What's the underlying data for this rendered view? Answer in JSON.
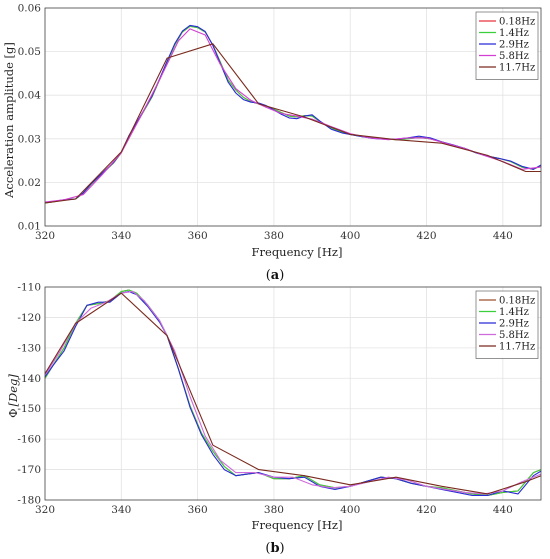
{
  "chart_data": [
    {
      "type": "line",
      "panel_label_open": "(",
      "panel_label_letter": "a",
      "panel_label_close": ")",
      "xlabel": "Frequency [Hz]",
      "ylabel": "Acceleration amplitude [g]",
      "xlim": [
        320,
        450
      ],
      "ylim": [
        0.01,
        0.06
      ],
      "xticks": [
        320,
        340,
        360,
        380,
        400,
        420,
        440
      ],
      "yticks": [
        "0.01",
        "0.02",
        "0.03",
        "0.04",
        "0.05",
        "0.06"
      ],
      "grid": true,
      "legend_position": "top-right",
      "series": [
        {
          "name": "0.18Hz",
          "color": "#e8333f",
          "x": [
            320,
            322,
            325,
            328,
            330,
            332,
            335,
            338,
            340,
            342,
            345,
            348,
            350,
            352,
            354,
            356,
            358,
            360,
            362,
            364,
            366,
            368,
            370,
            372,
            374,
            376,
            378,
            380,
            382,
            384,
            386,
            388,
            390,
            392,
            395,
            398,
            400,
            403,
            406,
            409,
            412,
            415,
            418,
            421,
            424,
            427,
            430,
            433,
            436,
            439,
            442,
            445,
            448,
            450
          ],
          "y": [
            0.0153,
            0.0155,
            0.016,
            0.0162,
            0.0175,
            0.0195,
            0.022,
            0.0245,
            0.0268,
            0.0305,
            0.035,
            0.0395,
            0.0435,
            0.0475,
            0.0515,
            0.0545,
            0.0558,
            0.0555,
            0.0545,
            0.0515,
            0.0475,
            0.0435,
            0.0412,
            0.0395,
            0.0385,
            0.038,
            0.0375,
            0.0368,
            0.036,
            0.0352,
            0.035,
            0.0353,
            0.0352,
            0.034,
            0.0325,
            0.0315,
            0.031,
            0.0305,
            0.0302,
            0.03,
            0.0298,
            0.03,
            0.0303,
            0.03,
            0.0293,
            0.0285,
            0.0278,
            0.0268,
            0.026,
            0.0255,
            0.0248,
            0.0235,
            0.023,
            0.0238
          ]
        },
        {
          "name": "1.4Hz",
          "color": "#3ccf3c",
          "x": [
            320,
            322,
            325,
            328,
            330,
            332,
            335,
            338,
            340,
            342,
            345,
            348,
            350,
            352,
            354,
            356,
            358,
            360,
            362,
            364,
            366,
            368,
            370,
            372,
            374,
            376,
            378,
            380,
            382,
            384,
            386,
            388,
            390,
            392,
            395,
            398,
            400,
            403,
            406,
            409,
            412,
            415,
            418,
            421,
            424,
            427,
            430,
            433,
            436,
            439,
            442,
            445,
            448,
            450
          ],
          "y": [
            0.0153,
            0.0155,
            0.016,
            0.0162,
            0.0175,
            0.0195,
            0.022,
            0.0245,
            0.0268,
            0.0305,
            0.035,
            0.0395,
            0.0435,
            0.0475,
            0.0515,
            0.0545,
            0.0558,
            0.0555,
            0.0545,
            0.0515,
            0.0475,
            0.0435,
            0.0412,
            0.0395,
            0.0385,
            0.038,
            0.0375,
            0.0368,
            0.036,
            0.0352,
            0.035,
            0.0353,
            0.0352,
            0.034,
            0.0325,
            0.0315,
            0.031,
            0.0305,
            0.0302,
            0.03,
            0.0298,
            0.03,
            0.0303,
            0.03,
            0.0293,
            0.0285,
            0.0278,
            0.0268,
            0.026,
            0.0255,
            0.0248,
            0.0235,
            0.023,
            0.0238
          ]
        },
        {
          "name": "2.9Hz",
          "color": "#2a2ad6",
          "x": [
            320,
            322,
            325,
            328,
            330,
            332,
            335,
            338,
            340,
            342,
            345,
            348,
            350,
            352,
            354,
            356,
            358,
            360,
            362,
            364,
            366,
            368,
            370,
            372,
            374,
            376,
            378,
            380,
            382,
            384,
            386,
            388,
            390,
            392,
            395,
            398,
            400,
            403,
            406,
            409,
            412,
            415,
            418,
            421,
            424,
            427,
            430,
            433,
            436,
            439,
            442,
            445,
            448,
            450
          ],
          "y": [
            0.0154,
            0.0156,
            0.016,
            0.0162,
            0.0176,
            0.0196,
            0.0221,
            0.0246,
            0.0269,
            0.0307,
            0.0352,
            0.0397,
            0.0437,
            0.0478,
            0.0518,
            0.0547,
            0.056,
            0.0557,
            0.0546,
            0.0514,
            0.0472,
            0.043,
            0.0405,
            0.039,
            0.0384,
            0.0382,
            0.0376,
            0.0366,
            0.0356,
            0.0348,
            0.0346,
            0.0352,
            0.0355,
            0.0341,
            0.0322,
            0.0313,
            0.031,
            0.0305,
            0.0301,
            0.0299,
            0.0299,
            0.0302,
            0.0306,
            0.0302,
            0.0293,
            0.0286,
            0.0278,
            0.0268,
            0.026,
            0.0255,
            0.0249,
            0.0237,
            0.023,
            0.024
          ]
        },
        {
          "name": "5.8Hz",
          "color": "#d23fd2",
          "x": [
            320,
            325,
            330,
            335,
            340,
            345,
            350,
            355,
            358,
            362,
            366,
            370,
            374,
            378,
            382,
            386,
            390,
            395,
            400,
            405,
            410,
            415,
            420,
            425,
            430,
            435,
            440,
            445,
            450
          ],
          "y": [
            0.0155,
            0.016,
            0.0172,
            0.0218,
            0.0268,
            0.035,
            0.0435,
            0.0525,
            0.0552,
            0.0538,
            0.047,
            0.0415,
            0.0388,
            0.0372,
            0.0358,
            0.0352,
            0.0345,
            0.0328,
            0.0312,
            0.0302,
            0.0298,
            0.0302,
            0.0302,
            0.029,
            0.0278,
            0.0262,
            0.0248,
            0.023,
            0.0235
          ]
        },
        {
          "name": "11.7Hz",
          "color": "#7a2a1e",
          "x": [
            320,
            328,
            340,
            352,
            364,
            376,
            388,
            400,
            412,
            424,
            436,
            446,
            450
          ],
          "y": [
            0.0153,
            0.0162,
            0.027,
            0.0485,
            0.0518,
            0.038,
            0.035,
            0.031,
            0.0298,
            0.029,
            0.0262,
            0.0225,
            0.0225
          ]
        }
      ]
    },
    {
      "type": "line",
      "panel_label_open": "(",
      "panel_label_letter": "b",
      "panel_label_close": ")",
      "xlabel": "Frequency [Hz]",
      "ylabel_prefix": "Φ",
      "ylabel_unit": "[Deg]",
      "xlim": [
        320,
        450
      ],
      "ylim": [
        -180,
        -110
      ],
      "xticks": [
        320,
        340,
        360,
        380,
        400,
        420,
        440
      ],
      "yticks": [
        "-180",
        "-170",
        "-160",
        "-150",
        "-140",
        "-130",
        "-120",
        "-110"
      ],
      "grid": true,
      "legend_position": "top-right",
      "series": [
        {
          "name": "0.18Hz",
          "color": "#a0522d",
          "x": [
            320,
            322,
            325,
            328,
            331,
            334,
            337,
            340,
            342,
            344,
            347,
            350,
            352,
            355,
            358,
            361,
            364,
            367,
            370,
            373,
            376,
            380,
            384,
            388,
            392,
            396,
            400,
            404,
            408,
            412,
            416,
            420,
            424,
            428,
            432,
            436,
            440,
            444,
            448,
            450
          ],
          "y": [
            -140,
            -136,
            -130,
            -122,
            -116,
            -115.5,
            -114.5,
            -111.5,
            -111,
            -112,
            -116,
            -121,
            -126,
            -137,
            -149,
            -158,
            -164,
            -169,
            -172,
            -171.5,
            -171,
            -173,
            -173,
            -172,
            -175,
            -176,
            -175.5,
            -174,
            -172.5,
            -173,
            -174.5,
            -175.5,
            -176,
            -177,
            -178,
            -178.5,
            -177.5,
            -177,
            -171,
            -170
          ]
        },
        {
          "name": "1.4Hz",
          "color": "#3ccf3c",
          "x": [
            320,
            322,
            325,
            328,
            331,
            334,
            337,
            340,
            342,
            344,
            347,
            350,
            352,
            355,
            358,
            361,
            364,
            367,
            370,
            373,
            376,
            380,
            384,
            388,
            392,
            396,
            400,
            404,
            408,
            412,
            416,
            420,
            424,
            428,
            432,
            436,
            440,
            444,
            448,
            450
          ],
          "y": [
            -140,
            -136,
            -130,
            -122,
            -116,
            -115.5,
            -114.5,
            -111.5,
            -111,
            -112,
            -116,
            -121,
            -126,
            -137,
            -149,
            -158,
            -164,
            -169,
            -172,
            -171.5,
            -171,
            -173,
            -173,
            -172,
            -175,
            -176,
            -175.5,
            -174,
            -172.5,
            -173,
            -174.5,
            -175.5,
            -176,
            -177,
            -178,
            -178.5,
            -177.5,
            -177,
            -171,
            -170
          ]
        },
        {
          "name": "2.9Hz",
          "color": "#2a2ad6",
          "x": [
            320,
            322,
            325,
            328,
            331,
            334,
            337,
            340,
            342,
            344,
            347,
            350,
            352,
            355,
            358,
            361,
            364,
            367,
            370,
            373,
            376,
            380,
            384,
            388,
            392,
            396,
            400,
            404,
            408,
            412,
            416,
            420,
            424,
            428,
            432,
            436,
            440,
            444,
            448,
            450
          ],
          "y": [
            -139.5,
            -136,
            -131,
            -123,
            -116,
            -115,
            -115,
            -112,
            -111.5,
            -112.5,
            -116.5,
            -121.5,
            -126,
            -137,
            -149.5,
            -158.5,
            -165,
            -170,
            -172,
            -171.5,
            -171,
            -172.5,
            -173,
            -172.5,
            -175.5,
            -176.5,
            -175.5,
            -174,
            -172.5,
            -173,
            -174.5,
            -175.5,
            -176.5,
            -177.5,
            -178.5,
            -178.5,
            -177,
            -178,
            -172,
            -170.5
          ]
        },
        {
          "name": "5.8Hz",
          "color": "#cf6bdc",
          "x": [
            320,
            324,
            328,
            332,
            336,
            340,
            343,
            346,
            350,
            354,
            358,
            362,
            366,
            370,
            375,
            380,
            385,
            390,
            395,
            400,
            405,
            410,
            415,
            420,
            425,
            430,
            435,
            440,
            445,
            450
          ],
          "y": [
            -139,
            -131,
            -122,
            -117,
            -115,
            -112,
            -111.5,
            -114.5,
            -121,
            -131,
            -146,
            -159,
            -167,
            -171,
            -171,
            -172.5,
            -172.5,
            -175,
            -176,
            -175.5,
            -174,
            -172.5,
            -173.5,
            -175.5,
            -176.5,
            -177.5,
            -178,
            -177,
            -174,
            -171.5
          ]
        },
        {
          "name": "11.7Hz",
          "color": "#7a2a1e",
          "x": [
            320,
            328,
            340,
            352,
            364,
            376,
            388,
            400,
            412,
            424,
            436,
            446,
            450
          ],
          "y": [
            -138.5,
            -122,
            -112,
            -126,
            -162,
            -170,
            -172,
            -175,
            -172.5,
            -175.5,
            -178,
            -174,
            -172
          ]
        }
      ]
    }
  ]
}
